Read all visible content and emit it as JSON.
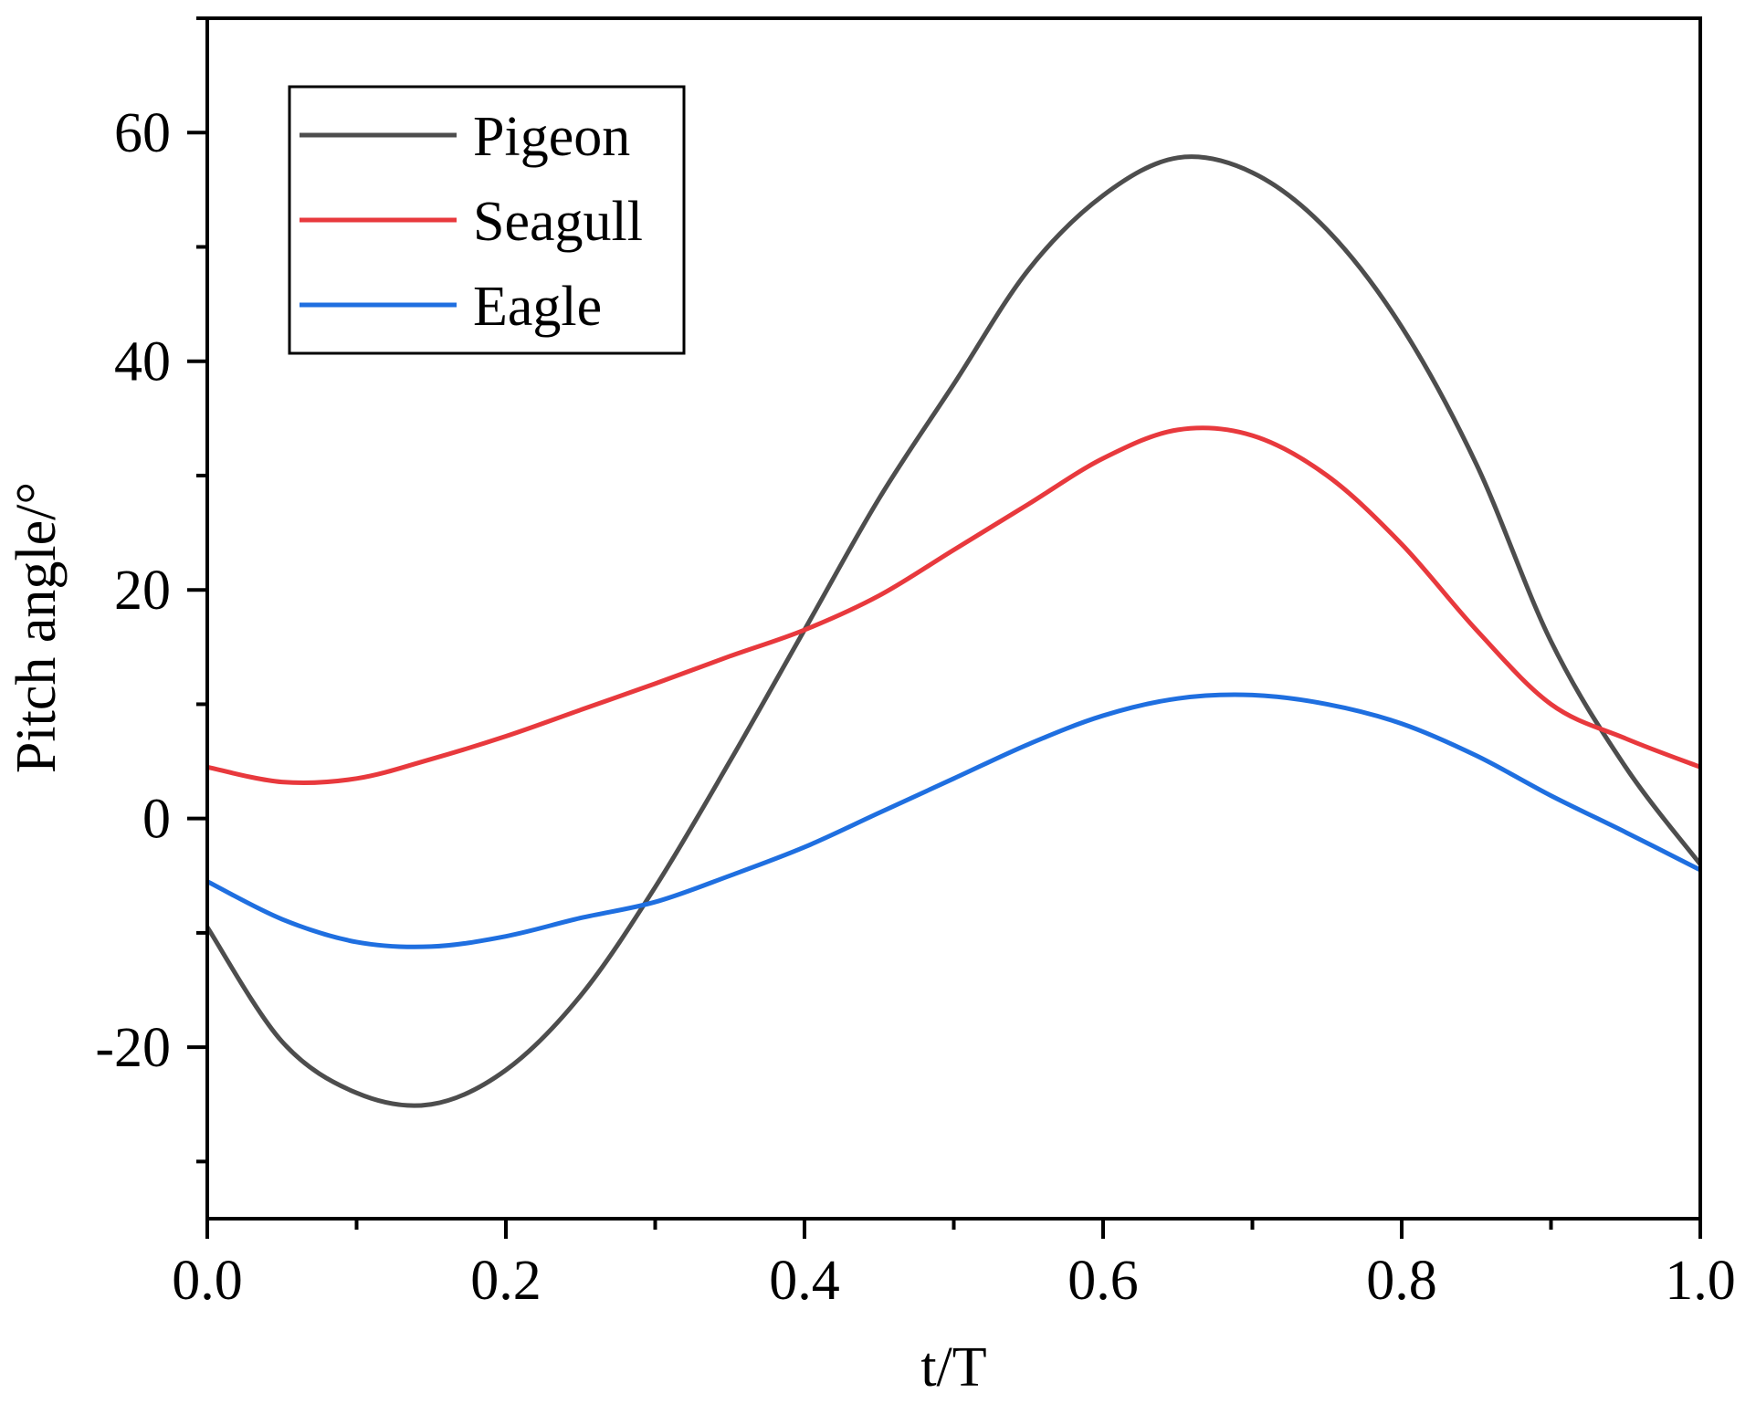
{
  "chart_data": {
    "type": "line",
    "title": "",
    "xlabel": "t/T",
    "ylabel": "Pitch angle/°",
    "xlim": [
      0.0,
      1.0
    ],
    "ylim": [
      -35,
      70
    ],
    "x_ticks": [
      0.0,
      0.2,
      0.4,
      0.6,
      0.8,
      1.0
    ],
    "x_tick_labels": [
      "0.0",
      "0.2",
      "0.4",
      "0.6",
      "0.8",
      "1.0"
    ],
    "y_ticks": [
      -20,
      0,
      20,
      40,
      60
    ],
    "y_tick_labels": [
      "-20",
      "0",
      "20",
      "40",
      "60"
    ],
    "grid": false,
    "legend_position": "top-left",
    "x": [
      0.0,
      0.05,
      0.1,
      0.15,
      0.2,
      0.25,
      0.3,
      0.35,
      0.4,
      0.45,
      0.5,
      0.55,
      0.6,
      0.65,
      0.7,
      0.75,
      0.8,
      0.85,
      0.9,
      0.95,
      1.0
    ],
    "series": [
      {
        "name": "Pigeon",
        "color": "#4d4d4d",
        "values": [
          -9.5,
          -19.5,
          -24,
          -25,
          -22,
          -15.5,
          -6,
          5,
          16.5,
          28,
          38,
          48,
          54.5,
          57.8,
          56.5,
          51.5,
          43,
          31,
          15.5,
          4.5,
          -4
        ]
      },
      {
        "name": "Seagull",
        "color": "#e8393d",
        "values": [
          4.5,
          3.2,
          3.5,
          5.2,
          7.2,
          9.5,
          11.8,
          14.2,
          16.5,
          19.5,
          23.5,
          27.5,
          31.5,
          34,
          33.5,
          30,
          24,
          16.5,
          10,
          7,
          4.5
        ]
      },
      {
        "name": "Eagle",
        "color": "#1f6fe0",
        "values": [
          -5.5,
          -8.8,
          -10.8,
          -11.2,
          -10.3,
          -8.7,
          -7.3,
          -5,
          -2.5,
          0.5,
          3.5,
          6.5,
          9,
          10.5,
          10.8,
          10,
          8.3,
          5.5,
          2,
          -1.2,
          -4.5
        ]
      }
    ]
  }
}
